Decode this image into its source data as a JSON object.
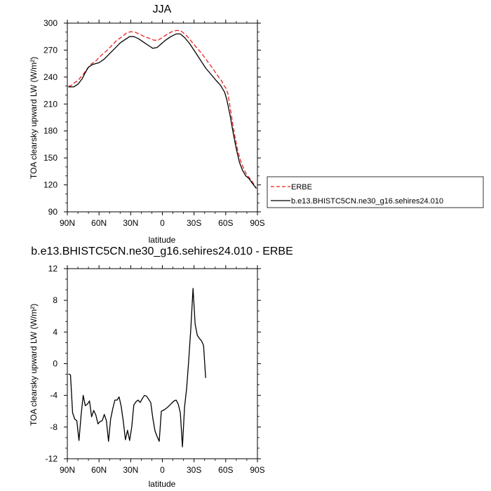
{
  "chart_data": [
    {
      "type": "line",
      "title": "JJA",
      "xlabel": "latitude",
      "ylabel": "TOA clearsky upward LW (W/m²)",
      "xlim": [
        90,
        -90
      ],
      "ylim": [
        90,
        300
      ],
      "xticks": [
        90,
        60,
        30,
        0,
        -30,
        -60,
        -90
      ],
      "xtick_labels": [
        "90N",
        "60N",
        "30N",
        "0",
        "30S",
        "60S",
        "90S"
      ],
      "yticks": [
        90,
        120,
        150,
        180,
        210,
        240,
        270,
        300
      ],
      "ytick_labels": [
        "90",
        "120",
        "150",
        "180",
        "210",
        "240",
        "270",
        "300"
      ],
      "grid": false,
      "legend_position": "right",
      "series": [
        {
          "name": "ERBE",
          "style": "dashed",
          "color": "#e8201f",
          "points": [
            [
              89,
              230
            ],
            [
              87,
              230
            ],
            [
              84,
              233
            ],
            [
              80,
              236
            ],
            [
              75,
              243
            ],
            [
              72,
              248
            ],
            [
              68,
              254
            ],
            [
              63,
              258
            ],
            [
              58,
              264
            ],
            [
              53,
              269
            ],
            [
              48,
              275
            ],
            [
              43,
              281
            ],
            [
              38,
              285
            ],
            [
              34,
              289
            ],
            [
              30,
              290.5
            ],
            [
              26,
              290
            ],
            [
              22,
              288
            ],
            [
              17,
              285
            ],
            [
              12,
              283
            ],
            [
              8,
              281
            ],
            [
              4,
              281
            ],
            [
              0,
              284
            ],
            [
              -5,
              288
            ],
            [
              -10,
              291
            ],
            [
              -14,
              292
            ],
            [
              -18,
              291
            ],
            [
              -23,
              286
            ],
            [
              -28,
              279
            ],
            [
              -33,
              272
            ],
            [
              -38,
              265
            ],
            [
              -43,
              257
            ],
            [
              -48,
              249
            ],
            [
              -52,
              242
            ],
            [
              -56,
              236
            ],
            [
              -58,
              231
            ],
            [
              -60,
              228
            ],
            [
              -62,
              222
            ],
            [
              -65,
              200
            ],
            [
              -68,
              178
            ],
            [
              -71,
              160
            ],
            [
              -74,
              147
            ],
            [
              -77,
              138
            ],
            [
              -80,
              131
            ],
            [
              -83,
              127
            ],
            [
              -86,
              122
            ],
            [
              -89,
              116
            ]
          ]
        },
        {
          "name": "b.e13.BHISTC5CN.ne30_g16.sehires24.010",
          "style": "solid",
          "color": "#000000",
          "points": [
            [
              89,
              229
            ],
            [
              87,
              229
            ],
            [
              84,
              229
            ],
            [
              80,
              232
            ],
            [
              76,
              238
            ],
            [
              73,
              245
            ],
            [
              70,
              251
            ],
            [
              66,
              254
            ],
            [
              60,
              256
            ],
            [
              55,
              260
            ],
            [
              50,
              266
            ],
            [
              45,
              272
            ],
            [
              40,
              278
            ],
            [
              35,
              282
            ],
            [
              31,
              285
            ],
            [
              27,
              285
            ],
            [
              23,
              283
            ],
            [
              18,
              279
            ],
            [
              13,
              275
            ],
            [
              9,
              272
            ],
            [
              5,
              273
            ],
            [
              1,
              277
            ],
            [
              -3,
              281
            ],
            [
              -8,
              285
            ],
            [
              -13,
              288
            ],
            [
              -17,
              288
            ],
            [
              -21,
              284
            ],
            [
              -26,
              277
            ],
            [
              -31,
              268
            ],
            [
              -36,
              259
            ],
            [
              -41,
              250
            ],
            [
              -46,
              243
            ],
            [
              -51,
              236
            ],
            [
              -55,
              231
            ],
            [
              -59,
              223
            ],
            [
              -61,
              215
            ],
            [
              -64,
              198
            ],
            [
              -67,
              178
            ],
            [
              -70,
              160
            ],
            [
              -73,
              145
            ],
            [
              -76,
              136
            ],
            [
              -79,
              130
            ],
            [
              -82,
              127
            ],
            [
              -85,
              122
            ],
            [
              -89,
              116
            ]
          ]
        }
      ]
    },
    {
      "type": "line",
      "title": "b.e13.BHISTC5CN.ne30_g16.sehires24.010 - ERBE",
      "xlabel": "latitude",
      "ylabel": "TOA clearsky upward LW (W/m²)",
      "xlim": [
        90,
        -90
      ],
      "ylim": [
        -12,
        12
      ],
      "xticks": [
        90,
        60,
        30,
        0,
        -30,
        -60,
        -90
      ],
      "xtick_labels": [
        "90N",
        "60N",
        "30N",
        "0",
        "30S",
        "60S",
        "90S"
      ],
      "yticks": [
        -12,
        -8,
        -4,
        0,
        4,
        8,
        12
      ],
      "ytick_labels": [
        "-12",
        "-8",
        "-4",
        "0",
        "4",
        "8",
        "12"
      ],
      "grid": false,
      "series": [
        {
          "name": "",
          "style": "solid",
          "color": "#000000",
          "points": [
            [
              89,
              -1.3
            ],
            [
              87,
              -1.4
            ],
            [
              85,
              -6.2
            ],
            [
              83,
              -7.0
            ],
            [
              81,
              -7.2
            ],
            [
              79,
              -9.7
            ],
            [
              77,
              -6.5
            ],
            [
              75,
              -4.0
            ],
            [
              73,
              -5.3
            ],
            [
              71,
              -5.1
            ],
            [
              69,
              -4.7
            ],
            [
              67,
              -6.7
            ],
            [
              65,
              -5.9
            ],
            [
              63,
              -6.5
            ],
            [
              61,
              -7.6
            ],
            [
              59,
              -7.3
            ],
            [
              57,
              -7.2
            ],
            [
              55,
              -6.4
            ],
            [
              53,
              -7.2
            ],
            [
              51,
              -9.8
            ],
            [
              49,
              -7.0
            ],
            [
              47,
              -5.7
            ],
            [
              45,
              -4.6
            ],
            [
              43,
              -4.6
            ],
            [
              41,
              -4.2
            ],
            [
              39,
              -5.4
            ],
            [
              37,
              -7.3
            ],
            [
              35,
              -9.6
            ],
            [
              33,
              -8.4
            ],
            [
              31,
              -9.7
            ],
            [
              29,
              -8.0
            ],
            [
              27,
              -5.2
            ],
            [
              25,
              -4.8
            ],
            [
              23,
              -4.6
            ],
            [
              21,
              -4.9
            ],
            [
              19,
              -4.4
            ],
            [
              17,
              -4.0
            ],
            [
              15,
              -4.1
            ],
            [
              13,
              -4.5
            ],
            [
              11,
              -4.9
            ],
            [
              9,
              -6.9
            ],
            [
              7,
              -8.5
            ],
            [
              5,
              -9.2
            ],
            [
              3,
              -9.8
            ],
            [
              1,
              -6.0
            ],
            [
              -2,
              -5.8
            ],
            [
              -5,
              -5.5
            ],
            [
              -8,
              -5.1
            ],
            [
              -11,
              -4.7
            ],
            [
              -13,
              -4.6
            ],
            [
              -15,
              -5.1
            ],
            [
              -17,
              -6.2
            ],
            [
              -19,
              -10.5
            ],
            [
              -21,
              -5.5
            ],
            [
              -23,
              -3.1
            ],
            [
              -25,
              0.5
            ],
            [
              -27,
              4.5
            ],
            [
              -29,
              9.5
            ],
            [
              -31,
              5.0
            ],
            [
              -33,
              3.6
            ],
            [
              -35,
              3.2
            ],
            [
              -37,
              2.9
            ],
            [
              -39,
              2.3
            ],
            [
              -41,
              -1.8
            ]
          ]
        }
      ]
    }
  ]
}
